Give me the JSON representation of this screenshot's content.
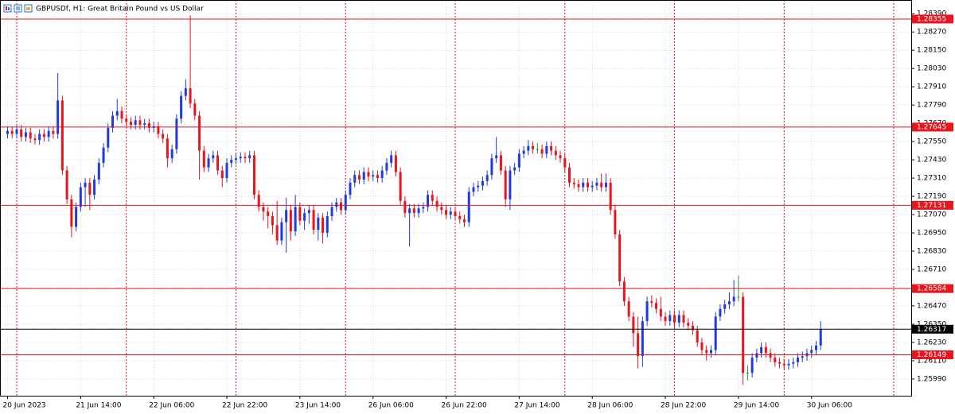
{
  "chart_data": {
    "type": "candlestick",
    "title": "GBPUSDf, H1:  Great Britain Pound vs US Dollar",
    "up_color": "#1f3be0",
    "down_color": "#e8141e",
    "flat_color": "#1a9a2a",
    "grid": true,
    "ylim": [
      1.2588,
      1.2848
    ],
    "yticks": [
      {
        "value": 1.2839,
        "label": "1.28390"
      },
      {
        "value": 1.2827,
        "label": "1.28270"
      },
      {
        "value": 1.2815,
        "label": "1.28150"
      },
      {
        "value": 1.2803,
        "label": "1.28030"
      },
      {
        "value": 1.2791,
        "label": "1.27910"
      },
      {
        "value": 1.2779,
        "label": "1.27790"
      },
      {
        "value": 1.2767,
        "label": "1.27670"
      },
      {
        "value": 1.2755,
        "label": "1.27550"
      },
      {
        "value": 1.2743,
        "label": "1.27430"
      },
      {
        "value": 1.2731,
        "label": "1.27310"
      },
      {
        "value": 1.2719,
        "label": "1.27190"
      },
      {
        "value": 1.2707,
        "label": "1.27070"
      },
      {
        "value": 1.2695,
        "label": "1.26950"
      },
      {
        "value": 1.2683,
        "label": "1.26830"
      },
      {
        "value": 1.2671,
        "label": "1.26710"
      },
      {
        "value": 1.2659,
        "label": "1.26590"
      },
      {
        "value": 1.2647,
        "label": "1.26470"
      },
      {
        "value": 1.2635,
        "label": "1.26350"
      },
      {
        "value": 1.2623,
        "label": "1.26230"
      },
      {
        "value": 1.2611,
        "label": "1.26110"
      },
      {
        "value": 1.2599,
        "label": "1.25990"
      }
    ],
    "xticks": [
      {
        "value": 0,
        "label": "20 Jun 2023"
      },
      {
        "value": 16,
        "label": "21 Jun 14:00"
      },
      {
        "value": 32,
        "label": "22 Jun 06:00"
      },
      {
        "value": 48,
        "label": "22 Jun 22:00"
      },
      {
        "value": 64,
        "label": "23 Jun 14:00"
      },
      {
        "value": 80,
        "label": "26 Jun 06:00"
      },
      {
        "value": 96,
        "label": "26 Jun 22:00"
      },
      {
        "value": 112,
        "label": "27 Jun 14:00"
      },
      {
        "value": 128,
        "label": "28 Jun 06:00"
      },
      {
        "value": 144,
        "label": "28 Jun 22:00"
      },
      {
        "value": 160,
        "label": "29 Jun 14:00"
      },
      {
        "value": 176,
        "label": "30 Jun 06:00"
      }
    ],
    "period_separators": [
      2,
      26,
      50,
      74,
      98,
      122,
      146,
      170,
      194
    ],
    "levels": [
      {
        "value": 1.28355,
        "color": "#e8141e"
      },
      {
        "value": 1.27645,
        "color": "#e8141e"
      },
      {
        "value": 1.27131,
        "color": "#e8141e"
      },
      {
        "value": 1.26584,
        "color": "#e8141e"
      },
      {
        "value": 1.26149,
        "color": "#e8141e"
      },
      {
        "value": 1.26317,
        "color": "#000000"
      }
    ],
    "ohlc": [
      [
        1.276,
        1.2765,
        1.2757,
        1.2762
      ],
      [
        1.2762,
        1.2765,
        1.2757,
        1.276
      ],
      [
        1.276,
        1.2766,
        1.2757,
        1.2763
      ],
      [
        1.2763,
        1.2766,
        1.2755,
        1.2758
      ],
      [
        1.2758,
        1.2764,
        1.2755,
        1.2761
      ],
      [
        1.2761,
        1.2764,
        1.2754,
        1.2757
      ],
      [
        1.2757,
        1.276,
        1.2753,
        1.2756
      ],
      [
        1.2756,
        1.2763,
        1.2753,
        1.276
      ],
      [
        1.276,
        1.2763,
        1.2755,
        1.2758
      ],
      [
        1.2758,
        1.2765,
        1.2755,
        1.2762
      ],
      [
        1.2762,
        1.2765,
        1.2757,
        1.276
      ],
      [
        1.276,
        1.28,
        1.2757,
        1.2782
      ],
      [
        1.2782,
        1.2785,
        1.2733,
        1.2736
      ],
      [
        1.2736,
        1.2739,
        1.2714,
        1.2717
      ],
      [
        1.2717,
        1.272,
        1.2692,
        1.2699
      ],
      [
        1.2699,
        1.2715,
        1.2696,
        1.2712
      ],
      [
        1.2712,
        1.2728,
        1.2709,
        1.2725
      ],
      [
        1.2725,
        1.2731,
        1.2712,
        1.2728
      ],
      [
        1.2728,
        1.2731,
        1.271,
        1.272
      ],
      [
        1.272,
        1.2733,
        1.2717,
        1.273
      ],
      [
        1.273,
        1.2744,
        1.2727,
        1.2741
      ],
      [
        1.2741,
        1.2754,
        1.2738,
        1.2751
      ],
      [
        1.2751,
        1.2767,
        1.2748,
        1.2764
      ],
      [
        1.2764,
        1.2775,
        1.2761,
        1.2772
      ],
      [
        1.2772,
        1.2783,
        1.2769,
        1.2775
      ],
      [
        1.2775,
        1.2778,
        1.2767,
        1.277
      ],
      [
        1.277,
        1.2773,
        1.2765,
        1.2768
      ],
      [
        1.2768,
        1.2771,
        1.2763,
        1.2766
      ],
      [
        1.2766,
        1.2772,
        1.2763,
        1.2769
      ],
      [
        1.2769,
        1.2772,
        1.2763,
        1.2766
      ],
      [
        1.2766,
        1.277,
        1.2763,
        1.2767
      ],
      [
        1.2767,
        1.277,
        1.2761,
        1.2764
      ],
      [
        1.2764,
        1.2768,
        1.2761,
        1.2765
      ],
      [
        1.2765,
        1.2768,
        1.2757,
        1.276
      ],
      [
        1.276,
        1.2763,
        1.2754,
        1.2757
      ],
      [
        1.2757,
        1.276,
        1.2738,
        1.2744
      ],
      [
        1.2744,
        1.2753,
        1.2741,
        1.275
      ],
      [
        1.275,
        1.2773,
        1.2747,
        1.277
      ],
      [
        1.277,
        1.2788,
        1.2767,
        1.2785
      ],
      [
        1.2785,
        1.2796,
        1.2782,
        1.279
      ],
      [
        1.279,
        1.2838,
        1.2777,
        1.278
      ],
      [
        1.278,
        1.2783,
        1.2769,
        1.2772
      ],
      [
        1.2772,
        1.2775,
        1.273,
        1.2749
      ],
      [
        1.2749,
        1.2752,
        1.2735,
        1.2738
      ],
      [
        1.2738,
        1.2747,
        1.2735,
        1.2744
      ],
      [
        1.2744,
        1.2749,
        1.2741,
        1.2746
      ],
      [
        1.2746,
        1.2749,
        1.2733,
        1.2736
      ],
      [
        1.2736,
        1.2739,
        1.2725,
        1.2731
      ],
      [
        1.2731,
        1.2744,
        1.2728,
        1.2741
      ],
      [
        1.2741,
        1.2746,
        1.2738,
        1.2743
      ],
      [
        1.2743,
        1.2747,
        1.274,
        1.2744
      ],
      [
        1.2744,
        1.2748,
        1.2741,
        1.2745
      ],
      [
        1.2745,
        1.2748,
        1.2741,
        1.2744
      ],
      [
        1.2744,
        1.2749,
        1.2741,
        1.2746
      ],
      [
        1.2746,
        1.2749,
        1.2717,
        1.272
      ],
      [
        1.272,
        1.2723,
        1.2709,
        1.2712
      ],
      [
        1.2712,
        1.2715,
        1.2703,
        1.2709
      ],
      [
        1.2709,
        1.2712,
        1.2698,
        1.2706
      ],
      [
        1.2706,
        1.2709,
        1.2694,
        1.27
      ],
      [
        1.27,
        1.2716,
        1.2687,
        1.269
      ],
      [
        1.269,
        1.2705,
        1.2687,
        1.2702
      ],
      [
        1.2702,
        1.2718,
        1.2682,
        1.271
      ],
      [
        1.271,
        1.2713,
        1.269,
        1.2696
      ],
      [
        1.2696,
        1.272,
        1.2693,
        1.2712
      ],
      [
        1.2712,
        1.2715,
        1.27,
        1.2703
      ],
      [
        1.2703,
        1.2711,
        1.2697,
        1.2708
      ],
      [
        1.2708,
        1.2713,
        1.2701,
        1.271
      ],
      [
        1.271,
        1.2713,
        1.2694,
        1.2697
      ],
      [
        1.2697,
        1.2708,
        1.269,
        1.2705
      ],
      [
        1.2705,
        1.2708,
        1.2688,
        1.2695
      ],
      [
        1.2695,
        1.2709,
        1.2692,
        1.2706
      ],
      [
        1.2706,
        1.2715,
        1.2703,
        1.2712
      ],
      [
        1.2712,
        1.2718,
        1.2709,
        1.2715
      ],
      [
        1.2715,
        1.2718,
        1.2707,
        1.271
      ],
      [
        1.271,
        1.2723,
        1.2707,
        1.272
      ],
      [
        1.272,
        1.2731,
        1.2717,
        1.2728
      ],
      [
        1.2728,
        1.2736,
        1.2725,
        1.2733
      ],
      [
        1.2733,
        1.2736,
        1.2727,
        1.273
      ],
      [
        1.273,
        1.2738,
        1.2727,
        1.2735
      ],
      [
        1.2735,
        1.2738,
        1.2729,
        1.2732
      ],
      [
        1.2732,
        1.2736,
        1.2729,
        1.2733
      ],
      [
        1.2733,
        1.2736,
        1.2728,
        1.2731
      ],
      [
        1.2731,
        1.2739,
        1.2728,
        1.2736
      ],
      [
        1.2736,
        1.2744,
        1.2733,
        1.2741
      ],
      [
        1.2741,
        1.2749,
        1.2738,
        1.2746
      ],
      [
        1.2746,
        1.2749,
        1.2732,
        1.2735
      ],
      [
        1.2735,
        1.2738,
        1.2713,
        1.2716
      ],
      [
        1.2716,
        1.2719,
        1.2705,
        1.2708
      ],
      [
        1.2708,
        1.2714,
        1.2686,
        1.2711
      ],
      [
        1.2711,
        1.2714,
        1.2705,
        1.2708
      ],
      [
        1.2708,
        1.2714,
        1.2705,
        1.2711
      ],
      [
        1.2711,
        1.2715,
        1.2708,
        1.2712
      ],
      [
        1.2712,
        1.2723,
        1.2709,
        1.272
      ],
      [
        1.272,
        1.2723,
        1.2713,
        1.2716
      ],
      [
        1.2716,
        1.2719,
        1.2709,
        1.2712
      ],
      [
        1.2712,
        1.2715,
        1.2707,
        1.271
      ],
      [
        1.271,
        1.2713,
        1.2704,
        1.2707
      ],
      [
        1.2707,
        1.2712,
        1.2704,
        1.2709
      ],
      [
        1.2709,
        1.2712,
        1.2703,
        1.2706
      ],
      [
        1.2706,
        1.2709,
        1.2701,
        1.2704
      ],
      [
        1.2704,
        1.2707,
        1.2699,
        1.2702
      ],
      [
        1.2702,
        1.2725,
        1.2699,
        1.2722
      ],
      [
        1.2722,
        1.2728,
        1.2719,
        1.2725
      ],
      [
        1.2725,
        1.2729,
        1.2722,
        1.2726
      ],
      [
        1.2726,
        1.2732,
        1.2723,
        1.2729
      ],
      [
        1.2729,
        1.2736,
        1.2726,
        1.2733
      ],
      [
        1.2733,
        1.2747,
        1.273,
        1.2744
      ],
      [
        1.2744,
        1.2758,
        1.2741,
        1.2746
      ],
      [
        1.2746,
        1.2749,
        1.2733,
        1.2736
      ],
      [
        1.2736,
        1.2739,
        1.2712,
        1.2717
      ],
      [
        1.2717,
        1.2739,
        1.271,
        1.2736
      ],
      [
        1.2736,
        1.2741,
        1.2733,
        1.2738
      ],
      [
        1.2738,
        1.275,
        1.2735,
        1.2747
      ],
      [
        1.2747,
        1.2752,
        1.2744,
        1.2749
      ],
      [
        1.2749,
        1.2756,
        1.2746,
        1.2752
      ],
      [
        1.2752,
        1.2755,
        1.2747,
        1.275
      ],
      [
        1.275,
        1.2754,
        1.2747,
        1.275
      ],
      [
        1.275,
        1.2753,
        1.2744,
        1.2747
      ],
      [
        1.2747,
        1.2755,
        1.2744,
        1.2752
      ],
      [
        1.2752,
        1.2755,
        1.2746,
        1.2749
      ],
      [
        1.2749,
        1.2752,
        1.2743,
        1.2746
      ],
      [
        1.2746,
        1.2749,
        1.2741,
        1.2744
      ],
      [
        1.2744,
        1.2747,
        1.2735,
        1.2738
      ],
      [
        1.2738,
        1.2741,
        1.2725,
        1.2728
      ],
      [
        1.2728,
        1.2731,
        1.2724,
        1.2727
      ],
      [
        1.2727,
        1.273,
        1.2722,
        1.2725
      ],
      [
        1.2725,
        1.2731,
        1.2722,
        1.2728
      ],
      [
        1.2728,
        1.2731,
        1.2722,
        1.2725
      ],
      [
        1.2725,
        1.2729,
        1.2722,
        1.2726
      ],
      [
        1.2726,
        1.2731,
        1.2723,
        1.2728
      ],
      [
        1.2728,
        1.2734,
        1.2722,
        1.2725
      ],
      [
        1.2725,
        1.2734,
        1.2722,
        1.2728
      ],
      [
        1.2728,
        1.2731,
        1.2707,
        1.271
      ],
      [
        1.271,
        1.2713,
        1.2691,
        1.2694
      ],
      [
        1.2694,
        1.2697,
        1.266,
        1.2663
      ],
      [
        1.2663,
        1.2666,
        1.2647,
        1.265
      ],
      [
        1.265,
        1.2653,
        1.2637,
        1.264
      ],
      [
        1.264,
        1.2643,
        1.262,
        1.2629
      ],
      [
        1.2629,
        1.264,
        1.2606,
        1.2614
      ],
      [
        1.2614,
        1.264,
        1.2607,
        1.2637
      ],
      [
        1.2637,
        1.2653,
        1.2634,
        1.265
      ],
      [
        1.265,
        1.2654,
        1.2646,
        1.2649
      ],
      [
        1.2649,
        1.2652,
        1.2642,
        1.2645
      ],
      [
        1.2645,
        1.2653,
        1.2637,
        1.264
      ],
      [
        1.264,
        1.2643,
        1.2634,
        1.2637
      ],
      [
        1.2637,
        1.2644,
        1.2634,
        1.2641
      ],
      [
        1.2641,
        1.2644,
        1.2633,
        1.2636
      ],
      [
        1.2636,
        1.2644,
        1.2633,
        1.2641
      ],
      [
        1.2641,
        1.2644,
        1.2633,
        1.2636
      ],
      [
        1.2636,
        1.2639,
        1.2631,
        1.2634
      ],
      [
        1.2634,
        1.2637,
        1.2628,
        1.2631
      ],
      [
        1.2631,
        1.2634,
        1.262,
        1.2623
      ],
      [
        1.2623,
        1.2626,
        1.2615,
        1.2618
      ],
      [
        1.2618,
        1.2621,
        1.2611,
        1.2616
      ],
      [
        1.2616,
        1.2621,
        1.2613,
        1.2618
      ],
      [
        1.2618,
        1.2643,
        1.2615,
        1.264
      ],
      [
        1.264,
        1.2648,
        1.2637,
        1.2645
      ],
      [
        1.2645,
        1.2651,
        1.2642,
        1.2648
      ],
      [
        1.2648,
        1.2656,
        1.2645,
        1.265
      ],
      [
        1.265,
        1.2664,
        1.2647,
        1.2653
      ],
      [
        1.2653,
        1.2667,
        1.265,
        1.2653
      ],
      [
        1.2653,
        1.2656,
        1.2595,
        1.2603
      ],
      [
        1.2603,
        1.2608,
        1.2598,
        1.2603
      ],
      [
        1.2603,
        1.2616,
        1.26,
        1.2613
      ],
      [
        1.2613,
        1.2619,
        1.261,
        1.2616
      ],
      [
        1.2616,
        1.2623,
        1.2613,
        1.262
      ],
      [
        1.262,
        1.2623,
        1.2613,
        1.2616
      ],
      [
        1.2616,
        1.2619,
        1.261,
        1.2613
      ],
      [
        1.2613,
        1.2616,
        1.2607,
        1.261
      ],
      [
        1.261,
        1.2613,
        1.2606,
        1.2609
      ],
      [
        1.2609,
        1.2612,
        1.2605,
        1.2608
      ],
      [
        1.2608,
        1.2612,
        1.2605,
        1.2609
      ],
      [
        1.2609,
        1.2613,
        1.2606,
        1.261
      ],
      [
        1.261,
        1.2616,
        1.2607,
        1.2613
      ],
      [
        1.2613,
        1.2617,
        1.261,
        1.2614
      ],
      [
        1.2614,
        1.2619,
        1.2611,
        1.2616
      ],
      [
        1.2616,
        1.2621,
        1.2613,
        1.2618
      ],
      [
        1.2618,
        1.2624,
        1.2615,
        1.2621
      ],
      [
        1.2621,
        1.2637,
        1.2618,
        1.2632
      ]
    ]
  }
}
